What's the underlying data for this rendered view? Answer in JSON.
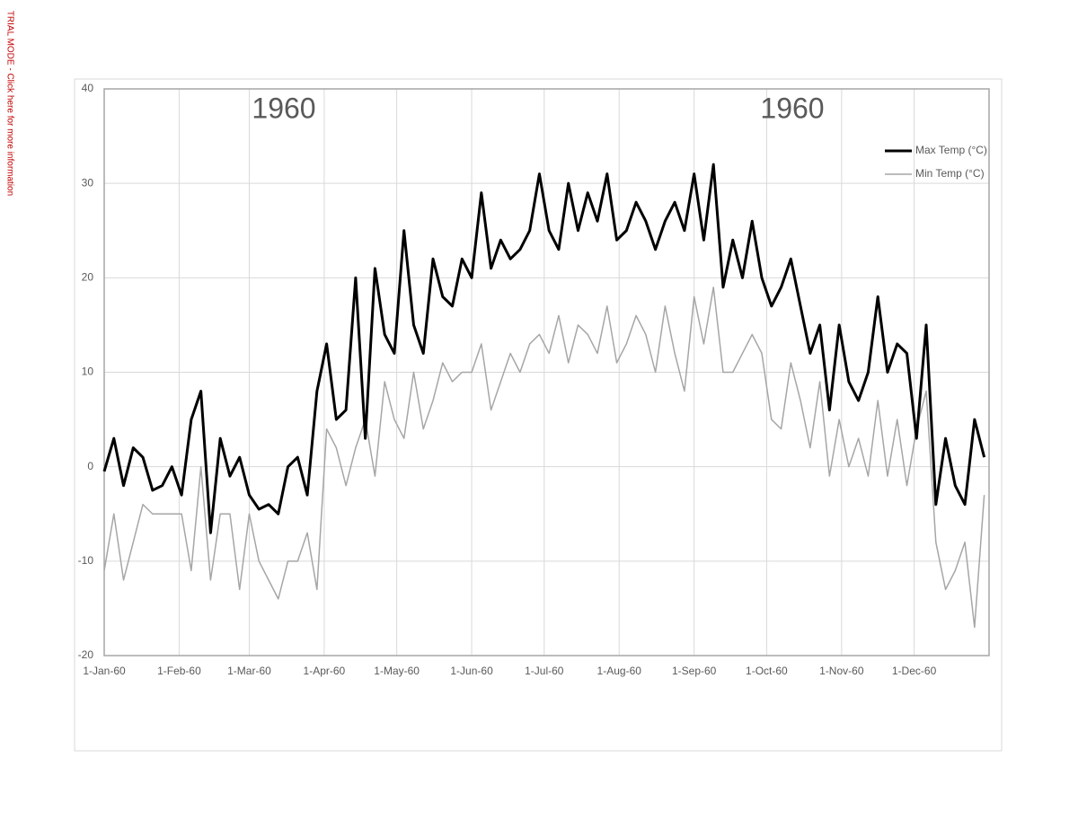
{
  "trial_notice": "TRIAL MODE - Click here for more information",
  "chart_data": {
    "type": "line",
    "annotations": [
      "1960",
      "1960"
    ],
    "x": [
      0,
      4,
      8,
      12,
      16,
      20,
      24,
      28,
      32,
      36,
      40,
      44,
      48,
      52,
      56,
      60,
      64,
      68,
      72,
      76,
      80,
      84,
      88,
      92,
      96,
      100,
      104,
      108,
      112,
      116,
      120,
      124,
      128,
      132,
      136,
      140,
      144,
      148,
      152,
      156,
      160,
      164,
      168,
      172,
      176,
      180,
      184,
      188,
      192,
      196,
      200,
      204,
      208,
      212,
      216,
      220,
      224,
      228,
      232,
      236,
      240,
      244,
      248,
      252,
      256,
      260,
      264,
      268,
      272,
      276,
      280,
      284,
      288,
      292,
      296,
      300,
      304,
      308,
      312,
      316,
      320,
      324,
      328,
      332,
      336,
      340,
      344,
      348,
      352,
      356,
      360,
      364
    ],
    "series": [
      {
        "name": "Max Temp (°C)",
        "color": "#000000",
        "width": 3,
        "values": [
          -0.5,
          3,
          -2,
          2,
          1,
          -2.5,
          -2,
          0,
          -3,
          5,
          8,
          -7,
          3,
          -1,
          1,
          -3,
          -4.5,
          -4,
          -5,
          0,
          1,
          -3,
          8,
          13,
          5,
          6,
          20,
          3,
          21,
          14,
          12,
          25,
          15,
          12,
          22,
          18,
          17,
          22,
          20,
          29,
          21,
          24,
          22,
          23,
          25,
          31,
          25,
          23,
          30,
          25,
          29,
          26,
          31,
          24,
          25,
          28,
          26,
          23,
          26,
          28,
          25,
          31,
          24,
          32,
          19,
          24,
          20,
          26,
          20,
          17,
          19,
          22,
          17,
          12,
          15,
          6,
          15,
          9,
          7,
          10,
          18,
          10,
          13,
          12,
          3,
          15,
          -4,
          3,
          -2,
          -4,
          5,
          1
        ]
      },
      {
        "name": "Min Temp (°C)",
        "color": "#a6a6a6",
        "width": 1.5,
        "values": [
          -11,
          -5,
          -12,
          -8,
          -4,
          -5,
          -5,
          -5,
          -5,
          -11,
          0,
          -12,
          -5,
          -5,
          -13,
          -5,
          -10,
          -12,
          -14,
          -10,
          -10,
          -7,
          -13,
          4,
          2,
          -2,
          2,
          5,
          -1,
          9,
          5,
          3,
          10,
          4,
          7,
          11,
          9,
          10,
          10,
          13,
          6,
          9,
          12,
          10,
          13,
          14,
          12,
          16,
          11,
          15,
          14,
          12,
          17,
          11,
          13,
          16,
          14,
          10,
          17,
          12,
          8,
          18,
          13,
          19,
          10,
          10,
          12,
          14,
          12,
          5,
          4,
          11,
          7,
          2,
          9,
          -1,
          5,
          0,
          3,
          -1,
          7,
          -1,
          5,
          -2,
          4,
          8,
          -8,
          -13,
          -11,
          -8,
          -17,
          -3
        ]
      }
    ],
    "xlim": [
      0,
      366
    ],
    "xticks": [
      {
        "value": 0,
        "label": "1-Jan-60"
      },
      {
        "value": 31,
        "label": "1-Feb-60"
      },
      {
        "value": 60,
        "label": "1-Mar-60"
      },
      {
        "value": 91,
        "label": "1-Apr-60"
      },
      {
        "value": 121,
        "label": "1-May-60"
      },
      {
        "value": 152,
        "label": "1-Jun-60"
      },
      {
        "value": 182,
        "label": "1-Jul-60"
      },
      {
        "value": 213,
        "label": "1-Aug-60"
      },
      {
        "value": 244,
        "label": "1-Sep-60"
      },
      {
        "value": 274,
        "label": "1-Oct-60"
      },
      {
        "value": 305,
        "label": "1-Nov-60"
      },
      {
        "value": 335,
        "label": "1-Dec-60"
      }
    ],
    "ylim": [
      -20,
      40
    ],
    "yticks": [
      -20,
      -10,
      0,
      10,
      20,
      30,
      40
    ],
    "grid": true,
    "legend": "top-right"
  }
}
